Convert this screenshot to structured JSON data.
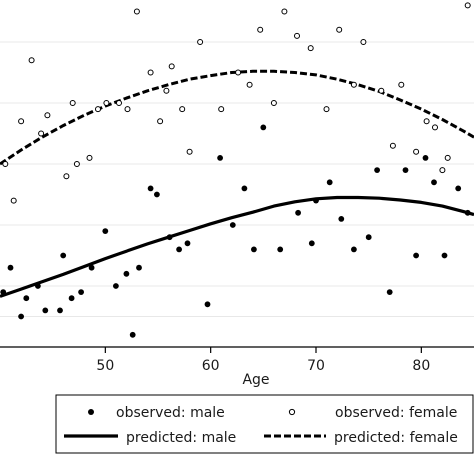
{
  "chart_data": {
    "type": "scatter",
    "title": "",
    "xlabel": "Age",
    "ylabel": "",
    "xlim": [
      40,
      85
    ],
    "ylim": [
      0,
      6
    ],
    "x_ticks": [
      50,
      60,
      70,
      80
    ],
    "y_gridlines": [
      0.5,
      1.0,
      2.0,
      3.0,
      4.0,
      5.0,
      6.0
    ],
    "grid": true,
    "legend_position": "bottom",
    "colors": {
      "marks": "#000000",
      "grid": "#e8e8e8",
      "background": "#ffffff"
    },
    "series": [
      {
        "name": "observed: male",
        "kind": "points",
        "marker": "filled-circle",
        "x": [
          40.3,
          41.0,
          42.0,
          42.5,
          43.6,
          44.3,
          45.7,
          46.0,
          46.8,
          47.7,
          48.7,
          50.0,
          51.0,
          52.0,
          52.6,
          53.2,
          54.3,
          54.9,
          56.1,
          57.0,
          57.8,
          59.7,
          60.9,
          62.1,
          63.2,
          64.1,
          65.0,
          66.6,
          68.3,
          69.6,
          70.0,
          71.3,
          72.4,
          73.6,
          75.0,
          75.8,
          77.0,
          78.5,
          79.5,
          80.4,
          81.2,
          82.2,
          83.5,
          84.4
        ],
        "y": [
          0.9,
          1.3,
          0.5,
          0.8,
          1.0,
          0.6,
          0.6,
          1.5,
          0.8,
          0.9,
          1.3,
          1.9,
          1.0,
          1.2,
          0.2,
          1.3,
          2.6,
          2.5,
          1.8,
          1.6,
          1.7,
          0.7,
          3.1,
          2.0,
          2.6,
          1.6,
          3.6,
          1.6,
          2.2,
          1.7,
          2.4,
          2.7,
          2.1,
          1.6,
          1.8,
          2.9,
          0.9,
          2.9,
          1.5,
          3.1,
          2.7,
          1.5,
          2.6,
          2.2
        ]
      },
      {
        "name": "observed: female",
        "kind": "points",
        "marker": "hollow-circle",
        "x": [
          40.5,
          41.3,
          42.0,
          43.0,
          43.9,
          44.5,
          46.3,
          46.9,
          47.3,
          48.5,
          49.3,
          50.1,
          51.3,
          52.1,
          53.0,
          54.3,
          55.2,
          55.8,
          56.3,
          57.3,
          58.0,
          59.0,
          60.0,
          61.0,
          62.6,
          63.7,
          64.7,
          66.0,
          67.0,
          68.2,
          69.5,
          71.0,
          72.2,
          73.6,
          74.5,
          76.2,
          77.3,
          78.1,
          79.5,
          80.5,
          81.3,
          82.0,
          82.5,
          84.4
        ],
        "y": [
          3.0,
          2.4,
          3.7,
          4.7,
          3.5,
          3.8,
          2.8,
          4.0,
          3.0,
          3.1,
          3.9,
          4.0,
          4.0,
          3.9,
          5.5,
          4.5,
          3.7,
          4.2,
          4.6,
          3.9,
          3.2,
          5.0,
          6.3,
          3.9,
          4.5,
          4.3,
          5.2,
          4.0,
          5.5,
          5.1,
          4.9,
          3.9,
          5.2,
          4.3,
          5.0,
          4.2,
          3.3,
          4.3,
          3.2,
          3.7,
          3.6,
          2.9,
          3.1,
          5.6
        ]
      },
      {
        "name": "predicted: male",
        "kind": "line",
        "style": "solid",
        "x": [
          40,
          42,
          44,
          46,
          48,
          50,
          52,
          54,
          56,
          58,
          60,
          62,
          64,
          66,
          68,
          70,
          72,
          74,
          76,
          78,
          80,
          82,
          84,
          85
        ],
        "y": [
          0.83,
          0.95,
          1.07,
          1.19,
          1.32,
          1.45,
          1.57,
          1.69,
          1.8,
          1.91,
          2.02,
          2.12,
          2.21,
          2.31,
          2.38,
          2.43,
          2.45,
          2.45,
          2.44,
          2.41,
          2.37,
          2.31,
          2.22,
          2.17
        ]
      },
      {
        "name": "predicted: female",
        "kind": "line",
        "style": "dashed",
        "x": [
          40,
          42,
          44,
          46,
          48,
          50,
          52,
          54,
          56,
          58,
          60,
          62,
          64,
          66,
          68,
          70,
          72,
          74,
          76,
          78,
          80,
          82,
          84,
          85
        ],
        "y": [
          3.0,
          3.23,
          3.44,
          3.63,
          3.8,
          3.95,
          4.08,
          4.2,
          4.3,
          4.39,
          4.45,
          4.5,
          4.52,
          4.52,
          4.5,
          4.46,
          4.39,
          4.3,
          4.19,
          4.05,
          3.9,
          3.73,
          3.54,
          3.44
        ]
      }
    ]
  }
}
